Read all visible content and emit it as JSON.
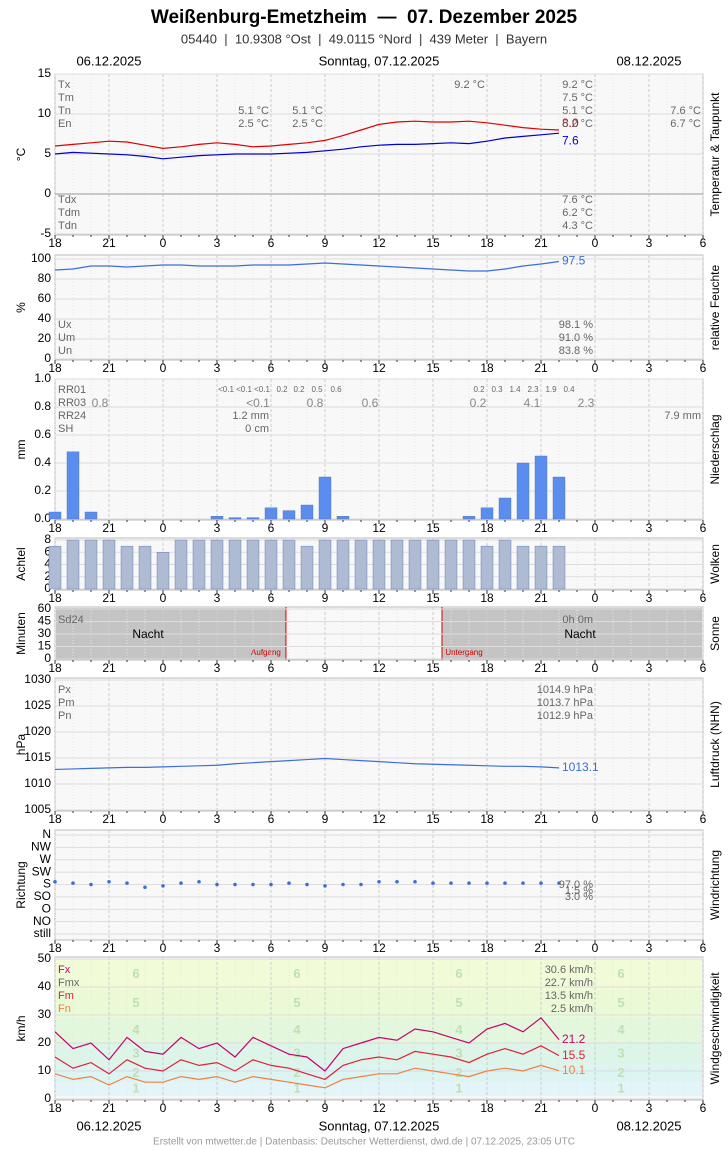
{
  "header": {
    "title": "Weißenburg-Emetzheim  —  07. Dezember 2025",
    "subtitle": "05440  |  10.9308 °Ost  |  49.0115 °Nord  |  439 Meter  |  Bayern"
  },
  "dates": {
    "left": "06.12.2025",
    "center": "Sonntag, 07.12.2025",
    "right": "08.12.2025"
  },
  "footer": "Erstellt von mtwetter.de | Datenbasis: Deutscher Wetterdienst, dwd.de | 07.12.2025, 23:05 UTC",
  "chart_data": [
    {
      "type": "line",
      "ylabel": "°C",
      "side_label": "Temperatur & Taupunkt",
      "ylim": [
        -5,
        15
      ],
      "yticks": [
        -5,
        0,
        5,
        10,
        15
      ],
      "categories": [
        "18",
        null,
        null,
        "21",
        null,
        null,
        "0",
        null,
        null,
        "3",
        null,
        null,
        "6",
        null,
        null,
        "9",
        null,
        null,
        "12",
        null,
        null,
        "15",
        null,
        null,
        "18",
        null,
        null,
        "21",
        null,
        null,
        "0",
        null,
        null,
        "3",
        null,
        null,
        "6"
      ],
      "series": [
        {
          "color": "#e00000",
          "end_label": "8.0",
          "values": [
            6.0,
            6.2,
            6.4,
            6.6,
            6.5,
            6.1,
            5.7,
            5.9,
            6.2,
            6.4,
            6.2,
            5.9,
            6.0,
            6.2,
            6.4,
            6.7,
            7.3,
            8.0,
            8.7,
            9.0,
            9.1,
            9.0,
            9.0,
            9.1,
            8.9,
            8.6,
            8.3,
            8.1,
            8.0,
            null,
            null,
            null,
            null,
            null,
            null,
            null,
            null
          ]
        },
        {
          "color": "#0000d0",
          "end_label": "7.6",
          "values": [
            5.0,
            5.2,
            5.1,
            5.0,
            4.9,
            4.7,
            4.4,
            4.6,
            4.8,
            4.9,
            5.0,
            5.0,
            5.0,
            5.1,
            5.2,
            5.4,
            5.6,
            5.9,
            6.1,
            6.2,
            6.2,
            6.3,
            6.4,
            6.3,
            6.6,
            7.0,
            7.2,
            7.4,
            7.6,
            null,
            null,
            null,
            null,
            null,
            null,
            null,
            null
          ]
        }
      ],
      "notes": [
        "Tx",
        "Tm",
        "Tn",
        "En",
        "9.2 °C",
        "9.2 °C",
        "7.5 °C",
        "5.1 °C",
        "5.2 °C",
        "5.1 °C",
        "5.1 °C",
        "2.5 °C",
        "2.5 °C",
        "7.6 °C",
        "6.7 °C",
        "Tdx",
        "Tdm",
        "Tdn",
        "7.6 °C",
        "6.2 °C",
        "4.3 °C"
      ]
    },
    {
      "type": "line",
      "ylabel": "%",
      "side_label": "relative Feuchte",
      "ylim": [
        0,
        100
      ],
      "yticks": [
        0,
        20,
        40,
        60,
        80,
        100
      ],
      "series": [
        {
          "color": "#3a6fd8",
          "end_label": "97.5",
          "values": [
            89,
            90,
            93,
            93,
            92,
            93,
            94,
            94,
            93,
            93,
            93,
            94,
            94,
            94,
            95,
            96,
            95,
            94,
            93,
            92,
            91,
            90,
            89,
            88,
            88,
            90,
            93,
            95,
            97.5,
            null,
            null,
            null,
            null,
            null,
            null,
            null,
            null
          ]
        }
      ],
      "notes": [
        "Ux",
        "Um",
        "Un",
        "98.1 %",
        "91.0 %",
        "83.8 %"
      ]
    },
    {
      "type": "bar",
      "ylabel": "mm",
      "side_label": "Niederschlag",
      "ylim": [
        0,
        1.0
      ],
      "yticks": [
        {
          "value": 0,
          "label": "0.0"
        },
        0.2,
        0.4,
        0.6,
        0.8,
        {
          "value": 1,
          "label": "1.0"
        }
      ],
      "series": [
        {
          "color": "#5b8def",
          "values": [
            0.05,
            0.48,
            0.05,
            0,
            0,
            0,
            0,
            0,
            0,
            0.02,
            0.01,
            0.01,
            0.08,
            0.06,
            0.1,
            0.3,
            0.02,
            0,
            0,
            0,
            0,
            0,
            0,
            0.02,
            0.08,
            0.15,
            0.4,
            0.45,
            0.3,
            null,
            null,
            null,
            null,
            null,
            null,
            null,
            null
          ]
        }
      ],
      "notes": [
        "RR01",
        "RR03",
        "RR24",
        "SH",
        "<0.1",
        "<0.1",
        "<0.1",
        "0.2",
        "0.2",
        "0.5",
        "0.6",
        "0.2",
        "0.3",
        "1.4",
        "2.3",
        "1.9",
        "0.4",
        "0.8",
        "<0.1",
        "0.8",
        "0.6",
        "0.2",
        "4.1",
        "2.3",
        "1.2 mm",
        "7.9 mm",
        "0 cm"
      ]
    },
    {
      "type": "bar",
      "ylabel": "Achtel",
      "side_label": "Wolken",
      "ylim": [
        0,
        8
      ],
      "yticks": [
        0,
        2,
        4,
        6,
        8
      ],
      "series": [
        {
          "color": "#aebbd2",
          "values": [
            7,
            8,
            8,
            8,
            7,
            7,
            6,
            8,
            8,
            8,
            8,
            8,
            8,
            8,
            7,
            8,
            8,
            8,
            8,
            8,
            8,
            8,
            8,
            8,
            7,
            8,
            7,
            7,
            7,
            null,
            null,
            null,
            null,
            null,
            null,
            null,
            null
          ]
        }
      ]
    },
    {
      "type": "bar",
      "ylabel": "Minuten",
      "side_label": "Sonne",
      "ylim": [
        0,
        60
      ],
      "yticks": [
        0,
        15,
        30,
        45,
        60
      ],
      "series": [
        {
          "color": "#f0c020",
          "values": [
            0,
            0,
            0,
            0,
            0,
            0,
            0,
            0,
            0,
            0,
            0,
            0,
            0,
            0,
            0,
            0,
            0,
            0,
            0,
            0,
            0,
            0,
            0,
            0,
            0,
            0,
            0,
            0,
            0,
            null,
            null,
            null,
            null,
            null,
            null,
            null,
            null
          ]
        }
      ],
      "events": [
        {
          "label": "Aufgang",
          "at": 12.83
        },
        {
          "label": "Untergang",
          "at": 21.5
        }
      ],
      "notes": [
        "Sd24",
        "0h 0m",
        "Nacht",
        "Nacht"
      ]
    },
    {
      "type": "line",
      "ylabel": "hPa",
      "side_label": "Luftdruck (NHN)",
      "ylim": [
        1005,
        1030
      ],
      "yticks": [
        1005,
        1010,
        1015,
        1020,
        1025,
        1030
      ],
      "series": [
        {
          "color": "#3a6fd8",
          "end_label": "1013.1",
          "values": [
            1012.8,
            1012.9,
            1013.0,
            1013.1,
            1013.2,
            1013.2,
            1013.3,
            1013.4,
            1013.5,
            1013.6,
            1013.9,
            1014.1,
            1014.3,
            1014.5,
            1014.7,
            1014.9,
            1014.7,
            1014.5,
            1014.3,
            1014.1,
            1013.9,
            1013.8,
            1013.7,
            1013.6,
            1013.5,
            1013.4,
            1013.4,
            1013.3,
            1013.1,
            null,
            null,
            null,
            null,
            null,
            null,
            null,
            null
          ]
        }
      ],
      "notes": [
        "Px",
        "Pm",
        "Pn",
        "1014.9 hPa",
        "1013.7 hPa",
        "1012.9 hPa"
      ]
    },
    {
      "type": "scatter",
      "ylabel": "Richtung",
      "side_label": "Windrichtung",
      "ylim": [
        0,
        360
      ],
      "yticks": [
        {
          "value": 0,
          "label": "still"
        },
        {
          "value": 45,
          "label": "NO"
        },
        {
          "value": 90,
          "label": "O"
        },
        {
          "value": 135,
          "label": "SO"
        },
        {
          "value": 180,
          "label": "S"
        },
        {
          "value": 225,
          "label": "SW"
        },
        {
          "value": 270,
          "label": "W"
        },
        {
          "value": 315,
          "label": "NW"
        },
        {
          "value": 360,
          "label": "N"
        }
      ],
      "series": [
        {
          "color": "#3a6fd8",
          "values": [
            190,
            185,
            180,
            190,
            185,
            170,
            175,
            185,
            190,
            180,
            180,
            180,
            180,
            185,
            180,
            175,
            180,
            180,
            190,
            190,
            190,
            185,
            185,
            185,
            185,
            185,
            185,
            185,
            185,
            null,
            null,
            null,
            null,
            null,
            null,
            null,
            null
          ]
        }
      ],
      "notes": [
        "97.0 %",
        "1.5 %",
        "3.0 %"
      ]
    },
    {
      "type": "line",
      "ylabel": "km/h",
      "side_label": "Windgeschwindigkeit",
      "ylim": [
        0,
        50
      ],
      "yticks": [
        0,
        10,
        20,
        30,
        40,
        50
      ],
      "bands": [
        {
          "label": "1",
          "from": 1,
          "to": 6,
          "color": "#e4f5fa"
        },
        {
          "label": "2",
          "from": 6,
          "to": 12,
          "color": "#dcf4f2"
        },
        {
          "label": "3",
          "from": 12,
          "to": 20,
          "color": "#dcf5e8"
        },
        {
          "label": "4",
          "from": 20,
          "to": 29,
          "color": "#e2f7dc"
        },
        {
          "label": "5",
          "from": 29,
          "to": 39,
          "color": "#eaf9d6"
        },
        {
          "label": "6",
          "from": 39,
          "to": 50,
          "color": "#f1fbd8"
        }
      ],
      "series": [
        {
          "color": "#c8006e",
          "end_label": "21.2",
          "values": [
            24,
            18,
            20,
            14,
            22,
            17,
            16,
            22,
            18,
            20,
            15,
            22,
            19,
            16,
            15,
            10,
            18,
            20,
            22,
            21,
            25,
            24,
            22,
            20,
            25,
            27,
            24,
            29,
            21.2,
            null,
            null,
            null,
            null,
            null,
            null,
            null,
            null
          ]
        },
        {
          "color": "#e0203a",
          "end_label": "15.5",
          "values": [
            15,
            11,
            13,
            9,
            14,
            11,
            10,
            14,
            12,
            13,
            10,
            14,
            12,
            11,
            9,
            7,
            12,
            14,
            15,
            14,
            17,
            16,
            15,
            13,
            16,
            18,
            16,
            19,
            15.5,
            null,
            null,
            null,
            null,
            null,
            null,
            null,
            null
          ]
        },
        {
          "color": "#f08040",
          "end_label": "10.1",
          "values": [
            9,
            7,
            8,
            5,
            8,
            6,
            6,
            8,
            7,
            8,
            6,
            8,
            7,
            6,
            5,
            4,
            7,
            8,
            9,
            9,
            11,
            10,
            9,
            8,
            10,
            11,
            10,
            12,
            10.1,
            null,
            null,
            null,
            null,
            null,
            null,
            null,
            null
          ]
        }
      ],
      "notes": [
        "Fx",
        "Fmx",
        "Fm",
        "Fn",
        "30.6 km/h",
        "22.7 km/h",
        "13.5 km/h",
        "2.5 km/h"
      ]
    }
  ]
}
